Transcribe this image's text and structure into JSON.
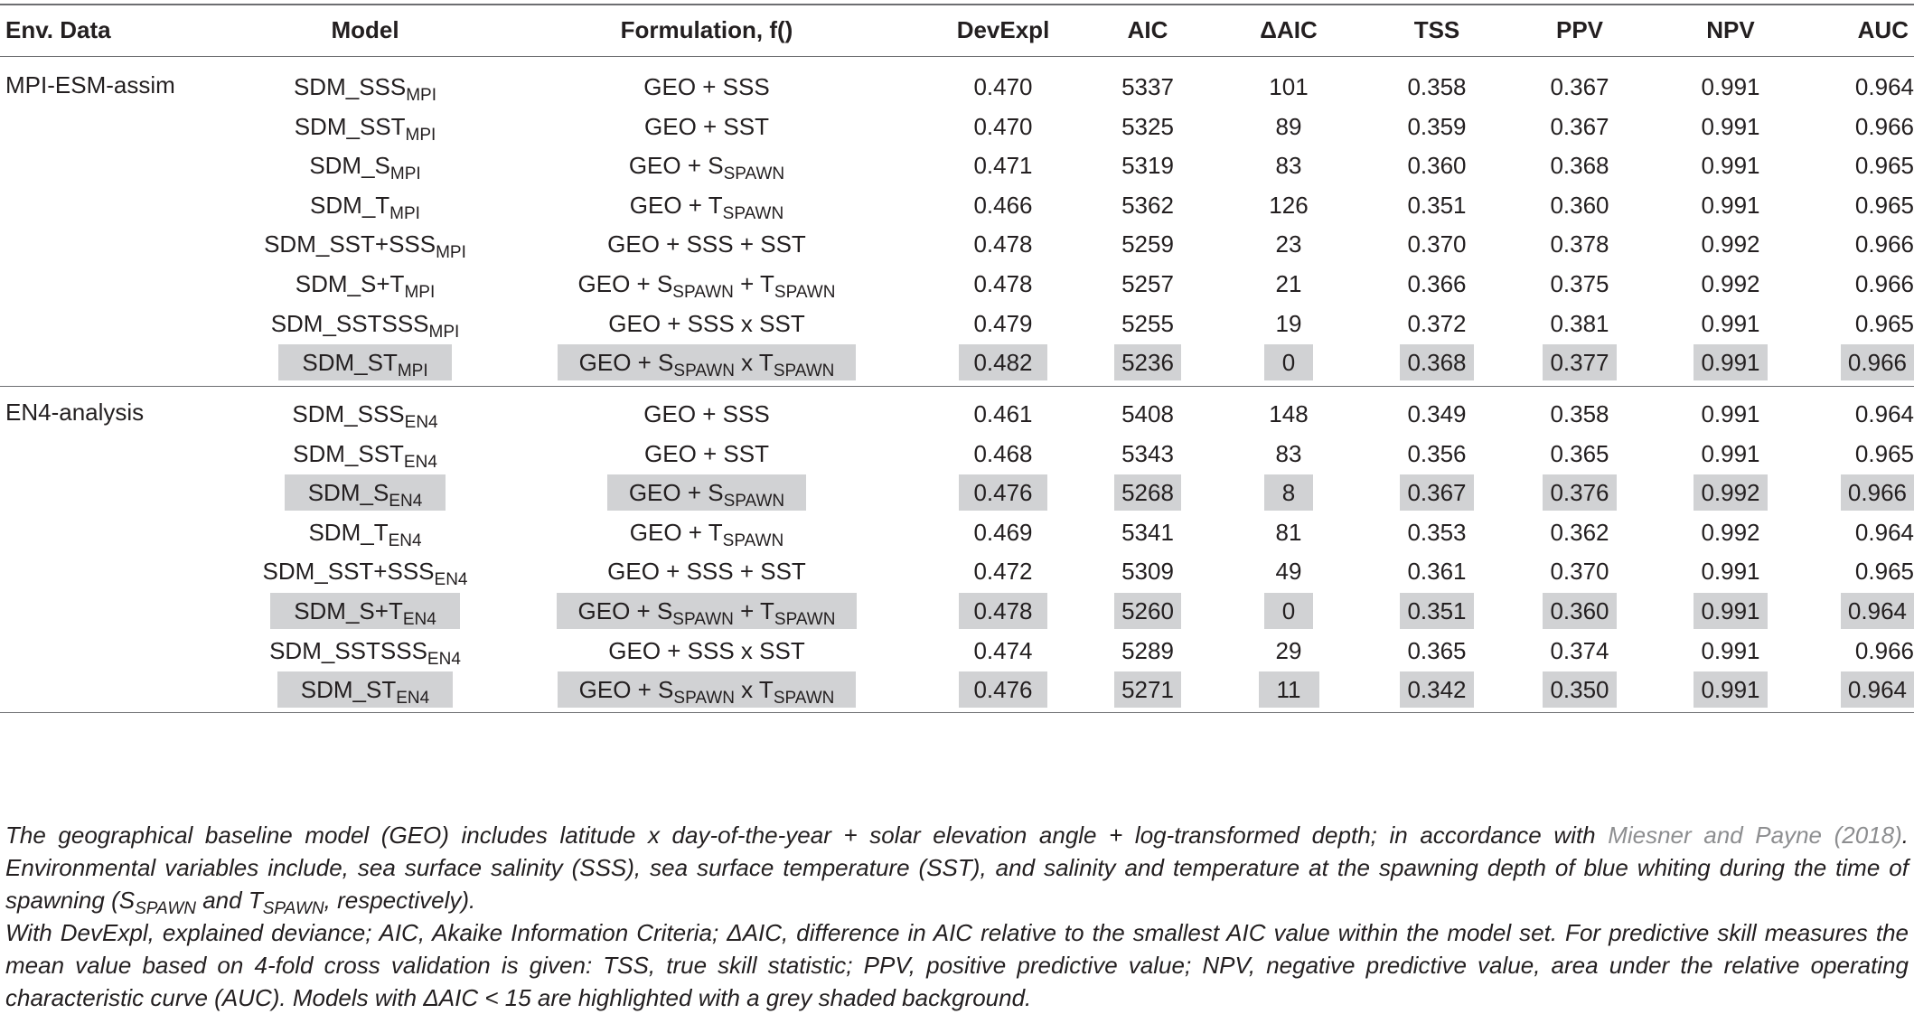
{
  "headers": [
    "Env. Data",
    "Model",
    "Formulation, f()",
    "DevExpl",
    "AIC",
    "ΔAIC",
    "TSS",
    "PPV",
    "NPV",
    "AUC"
  ],
  "groups": [
    {
      "env": "MPI-ESM-assim",
      "rows": [
        {
          "model": {
            "base": "SDM_SSS",
            "sub": "MPI"
          },
          "formula": [
            [
              "GEO + SSS",
              ""
            ]
          ],
          "devexpl": "0.470",
          "aic": "5337",
          "daic": "101",
          "tss": "0.358",
          "ppv": "0.367",
          "npv": "0.991",
          "auc": "0.964",
          "highlight": false
        },
        {
          "model": {
            "base": "SDM_SST",
            "sub": "MPI"
          },
          "formula": [
            [
              "GEO + SST",
              ""
            ]
          ],
          "devexpl": "0.470",
          "aic": "5325",
          "daic": "89",
          "tss": "0.359",
          "ppv": "0.367",
          "npv": "0.991",
          "auc": "0.966",
          "highlight": false
        },
        {
          "model": {
            "base": "SDM_S",
            "sub": "MPI"
          },
          "formula": [
            [
              "GEO + S",
              "SPAWN"
            ]
          ],
          "devexpl": "0.471",
          "aic": "5319",
          "daic": "83",
          "tss": "0.360",
          "ppv": "0.368",
          "npv": "0.991",
          "auc": "0.965",
          "highlight": false
        },
        {
          "model": {
            "base": "SDM_T",
            "sub": "MPI"
          },
          "formula": [
            [
              "GEO + T",
              "SPAWN"
            ]
          ],
          "devexpl": "0.466",
          "aic": "5362",
          "daic": "126",
          "tss": "0.351",
          "ppv": "0.360",
          "npv": "0.991",
          "auc": "0.965",
          "highlight": false
        },
        {
          "model": {
            "base": "SDM_SST+SSS",
            "sub": "MPI"
          },
          "formula": [
            [
              "GEO + SSS + SST",
              ""
            ]
          ],
          "devexpl": "0.478",
          "aic": "5259",
          "daic": "23",
          "tss": "0.370",
          "ppv": "0.378",
          "npv": "0.992",
          "auc": "0.966",
          "highlight": false
        },
        {
          "model": {
            "base": "SDM_S+T",
            "sub": "MPI"
          },
          "formula": [
            [
              "GEO + S",
              "SPAWN"
            ],
            [
              " + T",
              "SPAWN"
            ]
          ],
          "devexpl": "0.478",
          "aic": "5257",
          "daic": "21",
          "tss": "0.366",
          "ppv": "0.375",
          "npv": "0.992",
          "auc": "0.966",
          "highlight": false
        },
        {
          "model": {
            "base": "SDM_SSTSSS",
            "sub": "MPI"
          },
          "formula": [
            [
              "GEO + SSS x SST",
              ""
            ]
          ],
          "devexpl": "0.479",
          "aic": "5255",
          "daic": "19",
          "tss": "0.372",
          "ppv": "0.381",
          "npv": "0.991",
          "auc": "0.965",
          "highlight": false
        },
        {
          "model": {
            "base": "SDM_ST",
            "sub": "MPI"
          },
          "formula": [
            [
              "GEO + S",
              "SPAWN"
            ],
            [
              " x T",
              "SPAWN"
            ]
          ],
          "devexpl": "0.482",
          "aic": "5236",
          "daic": "0",
          "tss": "0.368",
          "ppv": "0.377",
          "npv": "0.991",
          "auc": "0.966",
          "highlight": true
        }
      ]
    },
    {
      "env": "EN4-analysis",
      "rows": [
        {
          "model": {
            "base": "SDM_SSS",
            "sub": "EN4"
          },
          "formula": [
            [
              "GEO + SSS",
              ""
            ]
          ],
          "devexpl": "0.461",
          "aic": "5408",
          "daic": "148",
          "tss": "0.349",
          "ppv": "0.358",
          "npv": "0.991",
          "auc": "0.964",
          "highlight": false
        },
        {
          "model": {
            "base": "SDM_SST",
            "sub": "EN4"
          },
          "formula": [
            [
              "GEO + SST",
              ""
            ]
          ],
          "devexpl": "0.468",
          "aic": "5343",
          "daic": "83",
          "tss": "0.356",
          "ppv": "0.365",
          "npv": "0.991",
          "auc": "0.965",
          "highlight": false
        },
        {
          "model": {
            "base": "SDM_S",
            "sub": "EN4"
          },
          "formula": [
            [
              "GEO + S",
              "SPAWN"
            ]
          ],
          "devexpl": "0.476",
          "aic": "5268",
          "daic": "8",
          "tss": "0.367",
          "ppv": "0.376",
          "npv": "0.992",
          "auc": "0.966",
          "highlight": true
        },
        {
          "model": {
            "base": "SDM_T",
            "sub": "EN4"
          },
          "formula": [
            [
              "GEO + T",
              "SPAWN"
            ]
          ],
          "devexpl": "0.469",
          "aic": "5341",
          "daic": "81",
          "tss": "0.353",
          "ppv": "0.362",
          "npv": "0.992",
          "auc": "0.964",
          "highlight": false
        },
        {
          "model": {
            "base": "SDM_SST+SSS",
            "sub": "EN4"
          },
          "formula": [
            [
              "GEO + SSS + SST",
              ""
            ]
          ],
          "devexpl": "0.472",
          "aic": "5309",
          "daic": "49",
          "tss": "0.361",
          "ppv": "0.370",
          "npv": "0.991",
          "auc": "0.965",
          "highlight": false
        },
        {
          "model": {
            "base": "SDM_S+T",
            "sub": "EN4"
          },
          "formula": [
            [
              "GEO + S",
              "SPAWN"
            ],
            [
              " + T",
              "SPAWN"
            ]
          ],
          "devexpl": "0.478",
          "aic": "5260",
          "daic": "0",
          "tss": "0.351",
          "ppv": "0.360",
          "npv": "0.991",
          "auc": "0.964",
          "highlight": true
        },
        {
          "model": {
            "base": "SDM_SSTSSS",
            "sub": "EN4"
          },
          "formula": [
            [
              "GEO + SSS x SST",
              ""
            ]
          ],
          "devexpl": "0.474",
          "aic": "5289",
          "daic": "29",
          "tss": "0.365",
          "ppv": "0.374",
          "npv": "0.991",
          "auc": "0.966",
          "highlight": false
        },
        {
          "model": {
            "base": "SDM_ST",
            "sub": "EN4"
          },
          "formula": [
            [
              "GEO + S",
              "SPAWN"
            ],
            [
              " x T",
              "SPAWN"
            ]
          ],
          "devexpl": "0.476",
          "aic": "5271",
          "daic": "11",
          "tss": "0.342",
          "ppv": "0.350",
          "npv": "0.991",
          "auc": "0.964",
          "highlight": true
        }
      ]
    }
  ],
  "footnote": {
    "p1_pre": "The geographical baseline model (GEO) includes latitude x day-of-the-year + solar elevation angle + log-transformed depth; in accordance with ",
    "p1_cite": "Miesner and Payne (2018)",
    "p1_mid": ". Environmental variables include, sea surface salinity (SSS), sea surface temperature (SST), and salinity and temperature at the spawning depth of blue whiting during the time of spawning (S",
    "p1_sub1": "SPAWN",
    "p1_and": " and T",
    "p1_sub2": "SPAWN",
    "p1_end": ", respectively).",
    "p2_a": "With DevExpl, explained deviance; AIC, Akaike Information Criteria; ΔAIC, difference in AIC relative to the smallest AIC value within the model set. For predictive skill measures the mean value based on 4-fold cross validation is given: TSS, true skill statistic; PPV, positive predictive value; NPV, negative predictive value, area under the relative operating characteristic curve (AUC). Models with ΔAIC < 15 are highlighted with a grey shaded background."
  }
}
